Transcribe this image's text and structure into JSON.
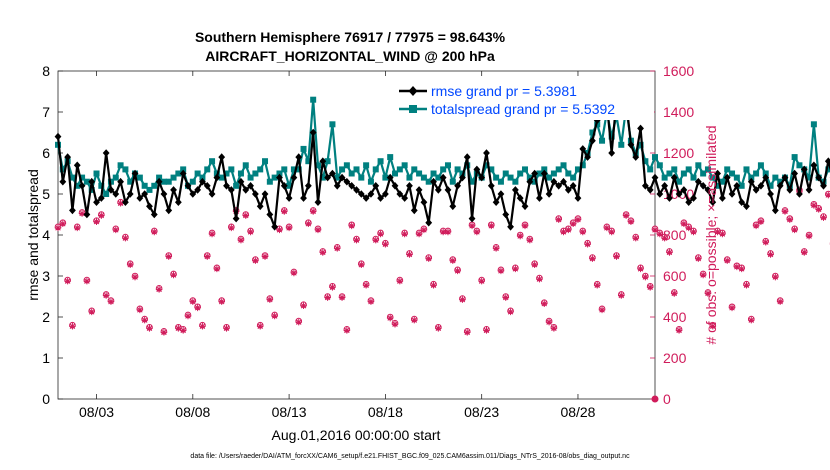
{
  "chart_data": {
    "type": "line",
    "title": "Southern Hemisphere 76917 / 77975 = 98.643%",
    "subtitle": "AIRCRAFT_HORIZONTAL_WIND @ 200 hPa",
    "xlabel": "Aug.01,2016 00:00:00 start",
    "ylabel_left": "rmse and totalspread",
    "ylabel_right": "# of obs: o=possible; ×=assimilated",
    "footer": "data file: /Users/raeder/DAI/ATM_forcXX/CAM6_setup/f.e21.FHIST_BGC.f09_025.CAM6assim.011/Diags_NTrS_2016-08/obs_diag_output.nc",
    "x_ticks": [
      "08/03",
      "08/08",
      "08/13",
      "08/18",
      "08/23",
      "08/28"
    ],
    "x_tick_days": [
      3,
      8,
      13,
      18,
      23,
      28
    ],
    "xlim_days": [
      1,
      32
    ],
    "y_left_ticks": [
      "0",
      "1",
      "2",
      "3",
      "4",
      "5",
      "6",
      "7",
      "8"
    ],
    "ylim_left": [
      0,
      8
    ],
    "y_right_ticks": [
      "0",
      "200",
      "400",
      "600",
      "800",
      "1000",
      "1200",
      "1400",
      "1600"
    ],
    "ylim_right": [
      0,
      1600
    ],
    "legend": {
      "placement": "top-right",
      "entries": [
        "rmse grand pr = 5.3981",
        "totalspread grand pr = 5.5392"
      ]
    },
    "colors": {
      "rmse": "#000000",
      "totalspread": "#008080",
      "obs": "#d01c5b",
      "legend_text": "#0047ff"
    },
    "series": [
      {
        "name": "rmse",
        "step_days": 0.25,
        "start_day": 1.0,
        "values": [
          6.4,
          5.3,
          5.9,
          4.6,
          5.7,
          5.2,
          4.5,
          5.3,
          4.8,
          4.9,
          6.0,
          5.1,
          5.0,
          5.3,
          4.8,
          5.0,
          5.5,
          4.9,
          5.0,
          4.7,
          4.5,
          5.3,
          5.0,
          4.6,
          5.1,
          4.8,
          5.5,
          5.2,
          5.0,
          5.1,
          5.3,
          5.2,
          5.0,
          5.4,
          5.9,
          5.2,
          5.1,
          4.4,
          5.3,
          5.1,
          5.2,
          5.0,
          4.7,
          5.0,
          4.5,
          4.2,
          5.4,
          5.2,
          4.9,
          5.4,
          5.9,
          4.9,
          5.2,
          6.5,
          4.8,
          5.8,
          5.4,
          5.5,
          5.2,
          5.4,
          5.3,
          5.2,
          5.1,
          5.0,
          4.9,
          5.0,
          5.2,
          4.9,
          5.0,
          5.4,
          5.2,
          5.0,
          4.9,
          5.2,
          4.6,
          5.1,
          4.8,
          4.3,
          5.3,
          5.1,
          5.4,
          5.1,
          4.7,
          5.2,
          5.4,
          5.9,
          4.4,
          5.6,
          5.4,
          6.0,
          5.2,
          4.8,
          5.0,
          4.5,
          4.2,
          5.1,
          4.9,
          4.7,
          5.3,
          5.5,
          4.9,
          5.5,
          5.0,
          5.3,
          5.2,
          5.3,
          5.1,
          5.2,
          4.9,
          6.1,
          5.9,
          6.3,
          6.8,
          6.9,
          7.2,
          6.0,
          7.3,
          6.9,
          7.3,
          6.2,
          5.9,
          6.6,
          5.2,
          5.1,
          5.4,
          5.0,
          5.2,
          4.9,
          5.4,
          5.0,
          5.1,
          4.8,
          4.9,
          5.3,
          5.2,
          5.1,
          4.8,
          5.5,
          4.9,
          5.4,
          5.0,
          5.2,
          4.8,
          4.7,
          5.3,
          5.1,
          5.2,
          5.4,
          5.0,
          4.6,
          5.2,
          5.4,
          5.1,
          5.5,
          5.0,
          5.6,
          5.1,
          5.7,
          5.4,
          5.2,
          5.8,
          5.4,
          5.2,
          5.1,
          5.3,
          5.2
        ]
      },
      {
        "name": "totalspread",
        "step_days": 0.25,
        "start_day": 1.0,
        "values": [
          6.2,
          5.6,
          5.8,
          5.4,
          5.2,
          5.4,
          5.3,
          5.1,
          5.5,
          5.2,
          5.0,
          5.3,
          5.4,
          5.7,
          5.6,
          5.3,
          5.5,
          5.4,
          5.2,
          5.1,
          5.2,
          5.4,
          5.3,
          5.3,
          5.4,
          5.5,
          5.6,
          5.2,
          5.3,
          5.5,
          5.4,
          5.6,
          5.8,
          5.5,
          5.4,
          5.5,
          5.6,
          5.2,
          5.5,
          5.7,
          5.4,
          5.5,
          5.6,
          5.8,
          5.3,
          5.4,
          5.5,
          5.6,
          5.2,
          5.6,
          5.6,
          6.1,
          5.8,
          7.3,
          5.7,
          5.4,
          5.8,
          6.7,
          5.4,
          5.6,
          5.7,
          5.5,
          5.6,
          5.4,
          5.7,
          5.3,
          5.6,
          5.8,
          5.4,
          5.9,
          5.5,
          5.6,
          5.7,
          5.4,
          5.6,
          5.5,
          5.4,
          5.3,
          5.5,
          5.4,
          5.6,
          5.7,
          5.3,
          5.6,
          5.5,
          5.7,
          5.3,
          5.5,
          5.4,
          5.7,
          5.6,
          5.4,
          5.3,
          5.5,
          5.4,
          5.3,
          5.5,
          5.6,
          5.4,
          5.3,
          5.5,
          5.6,
          5.4,
          5.5,
          5.6,
          5.7,
          5.5,
          5.4,
          5.6,
          5.7,
          6.0,
          6.5,
          6.7,
          6.3,
          7.0,
          6.4,
          6.9,
          6.2,
          7.1,
          6.3,
          6.0,
          6.2,
          5.8,
          5.6,
          5.9,
          5.7,
          5.4,
          5.5,
          5.6,
          5.3,
          5.5,
          5.6,
          5.4,
          5.7,
          5.5,
          5.6,
          5.4,
          5.2,
          5.3,
          5.6,
          5.5,
          5.4,
          5.2,
          5.6,
          5.4,
          5.5,
          5.7,
          5.5,
          5.2,
          5.4,
          5.3,
          5.4,
          5.2,
          5.9,
          5.7,
          5.6,
          5.4,
          6.7,
          5.4,
          5.3,
          5.6,
          5.8,
          5.5,
          5.3,
          5.2,
          5.3
        ]
      },
      {
        "name": "obs_possible",
        "step_days": 0.25,
        "start_day": 1.0,
        "values": [
          840,
          860,
          580,
          360,
          840,
          910,
          580,
          430,
          870,
          900,
          510,
          480,
          830,
          960,
          790,
          660,
          600,
          440,
          390,
          350,
          820,
          540,
          330,
          700,
          610,
          350,
          340,
          410,
          480,
          450,
          360,
          700,
          810,
          640,
          480,
          350,
          840,
          920,
          780,
          900,
          820,
          680,
          360,
          700,
          490,
          410,
          830,
          920,
          840,
          620,
          380,
          460,
          860,
          920,
          830,
          720,
          500,
          550,
          740,
          500,
          340,
          850,
          780,
          660,
          560,
          480,
          780,
          810,
          760,
          400,
          370,
          580,
          810,
          710,
          390,
          810,
          830,
          690,
          560,
          350,
          820,
          820,
          680,
          630,
          490,
          330,
          850,
          820,
          580,
          340,
          850,
          740,
          630,
          500,
          430,
          640,
          800,
          850,
          780,
          660,
          590,
          470,
          380,
          350,
          880,
          820,
          830,
          860,
          880,
          820,
          760,
          690,
          560,
          440,
          840,
          820,
          700,
          510,
          900,
          870,
          790,
          640,
          600,
          550,
          830,
          810,
          790,
          720,
          520,
          340,
          860,
          840,
          820,
          690,
          610,
          520,
          360,
          820,
          810,
          680,
          450,
          650,
          640,
          560,
          390,
          850,
          870,
          770,
          710,
          600,
          480,
          920,
          880,
          830,
          1020,
          720,
          800,
          950,
          930,
          890,
          1000,
          760,
          360
        ]
      },
      {
        "name": "obs_assimilated",
        "step_days": 0.25,
        "start_day": 1.0,
        "values": [
          835,
          855,
          575,
          355,
          835,
          905,
          575,
          425,
          865,
          895,
          505,
          475,
          825,
          955,
          785,
          655,
          595,
          435,
          385,
          345,
          815,
          535,
          325,
          695,
          605,
          345,
          335,
          405,
          475,
          445,
          355,
          695,
          805,
          635,
          475,
          345,
          835,
          915,
          775,
          895,
          815,
          675,
          355,
          695,
          485,
          405,
          825,
          915,
          835,
          615,
          375,
          455,
          855,
          915,
          825,
          715,
          495,
          545,
          735,
          495,
          335,
          845,
          775,
          655,
          555,
          475,
          775,
          805,
          755,
          395,
          365,
          575,
          805,
          705,
          385,
          805,
          825,
          685,
          555,
          345,
          815,
          815,
          675,
          625,
          485,
          325,
          845,
          815,
          575,
          335,
          845,
          735,
          625,
          495,
          425,
          635,
          795,
          845,
          775,
          655,
          585,
          465,
          375,
          345,
          875,
          815,
          825,
          855,
          875,
          815,
          755,
          685,
          555,
          435,
          835,
          815,
          695,
          505,
          895,
          865,
          785,
          635,
          595,
          545,
          825,
          805,
          785,
          715,
          515,
          335,
          855,
          835,
          815,
          685,
          605,
          515,
          355,
          815,
          805,
          675,
          445,
          645,
          635,
          555,
          385,
          845,
          865,
          765,
          705,
          595,
          475,
          915,
          875,
          825,
          1010,
          715,
          795,
          945,
          925,
          885,
          995,
          755,
          355
        ]
      }
    ]
  }
}
